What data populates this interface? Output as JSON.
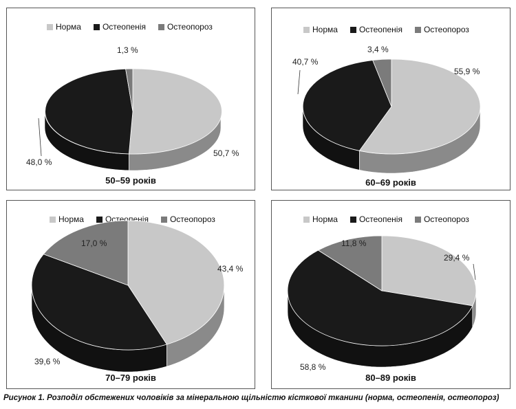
{
  "legend_labels": [
    "Норма",
    "Остеопенія",
    "Остеопороз"
  ],
  "colors": {
    "norma": "#c8c8c8",
    "osteopenia": "#1a1a1a",
    "osteoporosis": "#7b7b7b"
  },
  "caption": "Рисунок 1. Розподіл обстежених чоловіків за мінеральною щільністю кісткової тканини (норма, остеопенія, остеопороз)",
  "chart_data": [
    {
      "type": "pie",
      "title": "50–59 років",
      "categories": [
        "Норма",
        "Остеопенія",
        "Остеопороз"
      ],
      "values": [
        50.7,
        48.0,
        1.3
      ],
      "labels": [
        "50,7 %",
        "48,0 %",
        "1,3 %"
      ]
    },
    {
      "type": "pie",
      "title": "60–69 років",
      "categories": [
        "Норма",
        "Остеопенія",
        "Остеопороз"
      ],
      "values": [
        55.9,
        40.7,
        3.4
      ],
      "labels": [
        "55,9 %",
        "40,7 %",
        "3,4 %"
      ]
    },
    {
      "type": "pie",
      "title": "70–79 років",
      "categories": [
        "Норма",
        "Остеопенія",
        "Остеопороз"
      ],
      "values": [
        43.4,
        39.6,
        17.0
      ],
      "labels": [
        "43,4 %",
        "39,6 %",
        "17,0 %"
      ]
    },
    {
      "type": "pie",
      "title": "80–89 років",
      "categories": [
        "Норма",
        "Остеопенія",
        "Остеопороз"
      ],
      "values": [
        29.4,
        58.8,
        11.8
      ],
      "labels": [
        "29,4 %",
        "58,8 %",
        "11,8 %"
      ]
    }
  ]
}
